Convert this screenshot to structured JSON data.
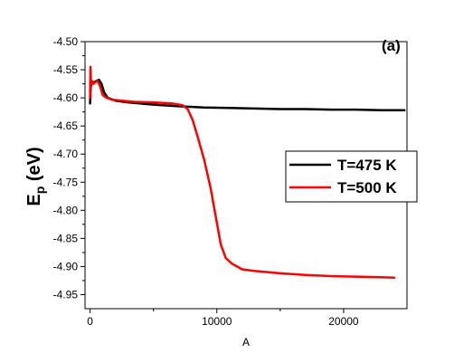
{
  "chart_data": {
    "type": "line",
    "panel_label": "(a)",
    "xlabel": "A",
    "ylabel_main": "E",
    "ylabel_sub": "p",
    "ylabel_unit": " (eV)",
    "xlim": [
      -400,
      25000
    ],
    "ylim": [
      -4.975,
      -4.5
    ],
    "xticks": [
      0,
      10000,
      20000
    ],
    "xtick_labels": [
      "0",
      "10000",
      "20000"
    ],
    "yticks": [
      -4.5,
      -4.55,
      -4.6,
      -4.65,
      -4.7,
      -4.75,
      -4.8,
      -4.85,
      -4.9,
      -4.95
    ],
    "ytick_labels": [
      "-4.50",
      "-4.55",
      "-4.60",
      "-4.65",
      "-4.70",
      "-4.75",
      "-4.80",
      "-4.85",
      "-4.90",
      "-4.95"
    ],
    "grid": false,
    "legend_position": "center-right",
    "series": [
      {
        "name": "T=475 K",
        "color": "#000000",
        "x": [
          0,
          60,
          150,
          300,
          500,
          700,
          900,
          1100,
          1400,
          2000,
          3000,
          5000,
          7000,
          9000,
          11000,
          13000,
          15000,
          17000,
          19000,
          21000,
          23000,
          24800
        ],
        "y": [
          -4.61,
          -4.57,
          -4.575,
          -4.572,
          -4.57,
          -4.568,
          -4.575,
          -4.59,
          -4.6,
          -4.605,
          -4.608,
          -4.612,
          -4.615,
          -4.617,
          -4.618,
          -4.619,
          -4.62,
          -4.62,
          -4.621,
          -4.621,
          -4.622,
          -4.622
        ]
      },
      {
        "name": "T=500 K",
        "color": "#ff0000",
        "x": [
          0,
          30,
          80,
          150,
          250,
          400,
          600,
          800,
          1000,
          1300,
          1700,
          2500,
          3500,
          5000,
          6500,
          7300,
          7700,
          8100,
          8500,
          9000,
          9500,
          9900,
          10300,
          10700,
          11200,
          12000,
          13000,
          15000,
          17000,
          19000,
          21000,
          23000,
          24000
        ],
        "y": [
          -4.6,
          -4.545,
          -4.58,
          -4.57,
          -4.575,
          -4.572,
          -4.57,
          -4.58,
          -4.595,
          -4.6,
          -4.603,
          -4.605,
          -4.607,
          -4.608,
          -4.61,
          -4.613,
          -4.62,
          -4.64,
          -4.67,
          -4.71,
          -4.76,
          -4.81,
          -4.86,
          -4.885,
          -4.895,
          -4.905,
          -4.908,
          -4.912,
          -4.915,
          -4.917,
          -4.918,
          -4.919,
          -4.92
        ]
      }
    ]
  }
}
